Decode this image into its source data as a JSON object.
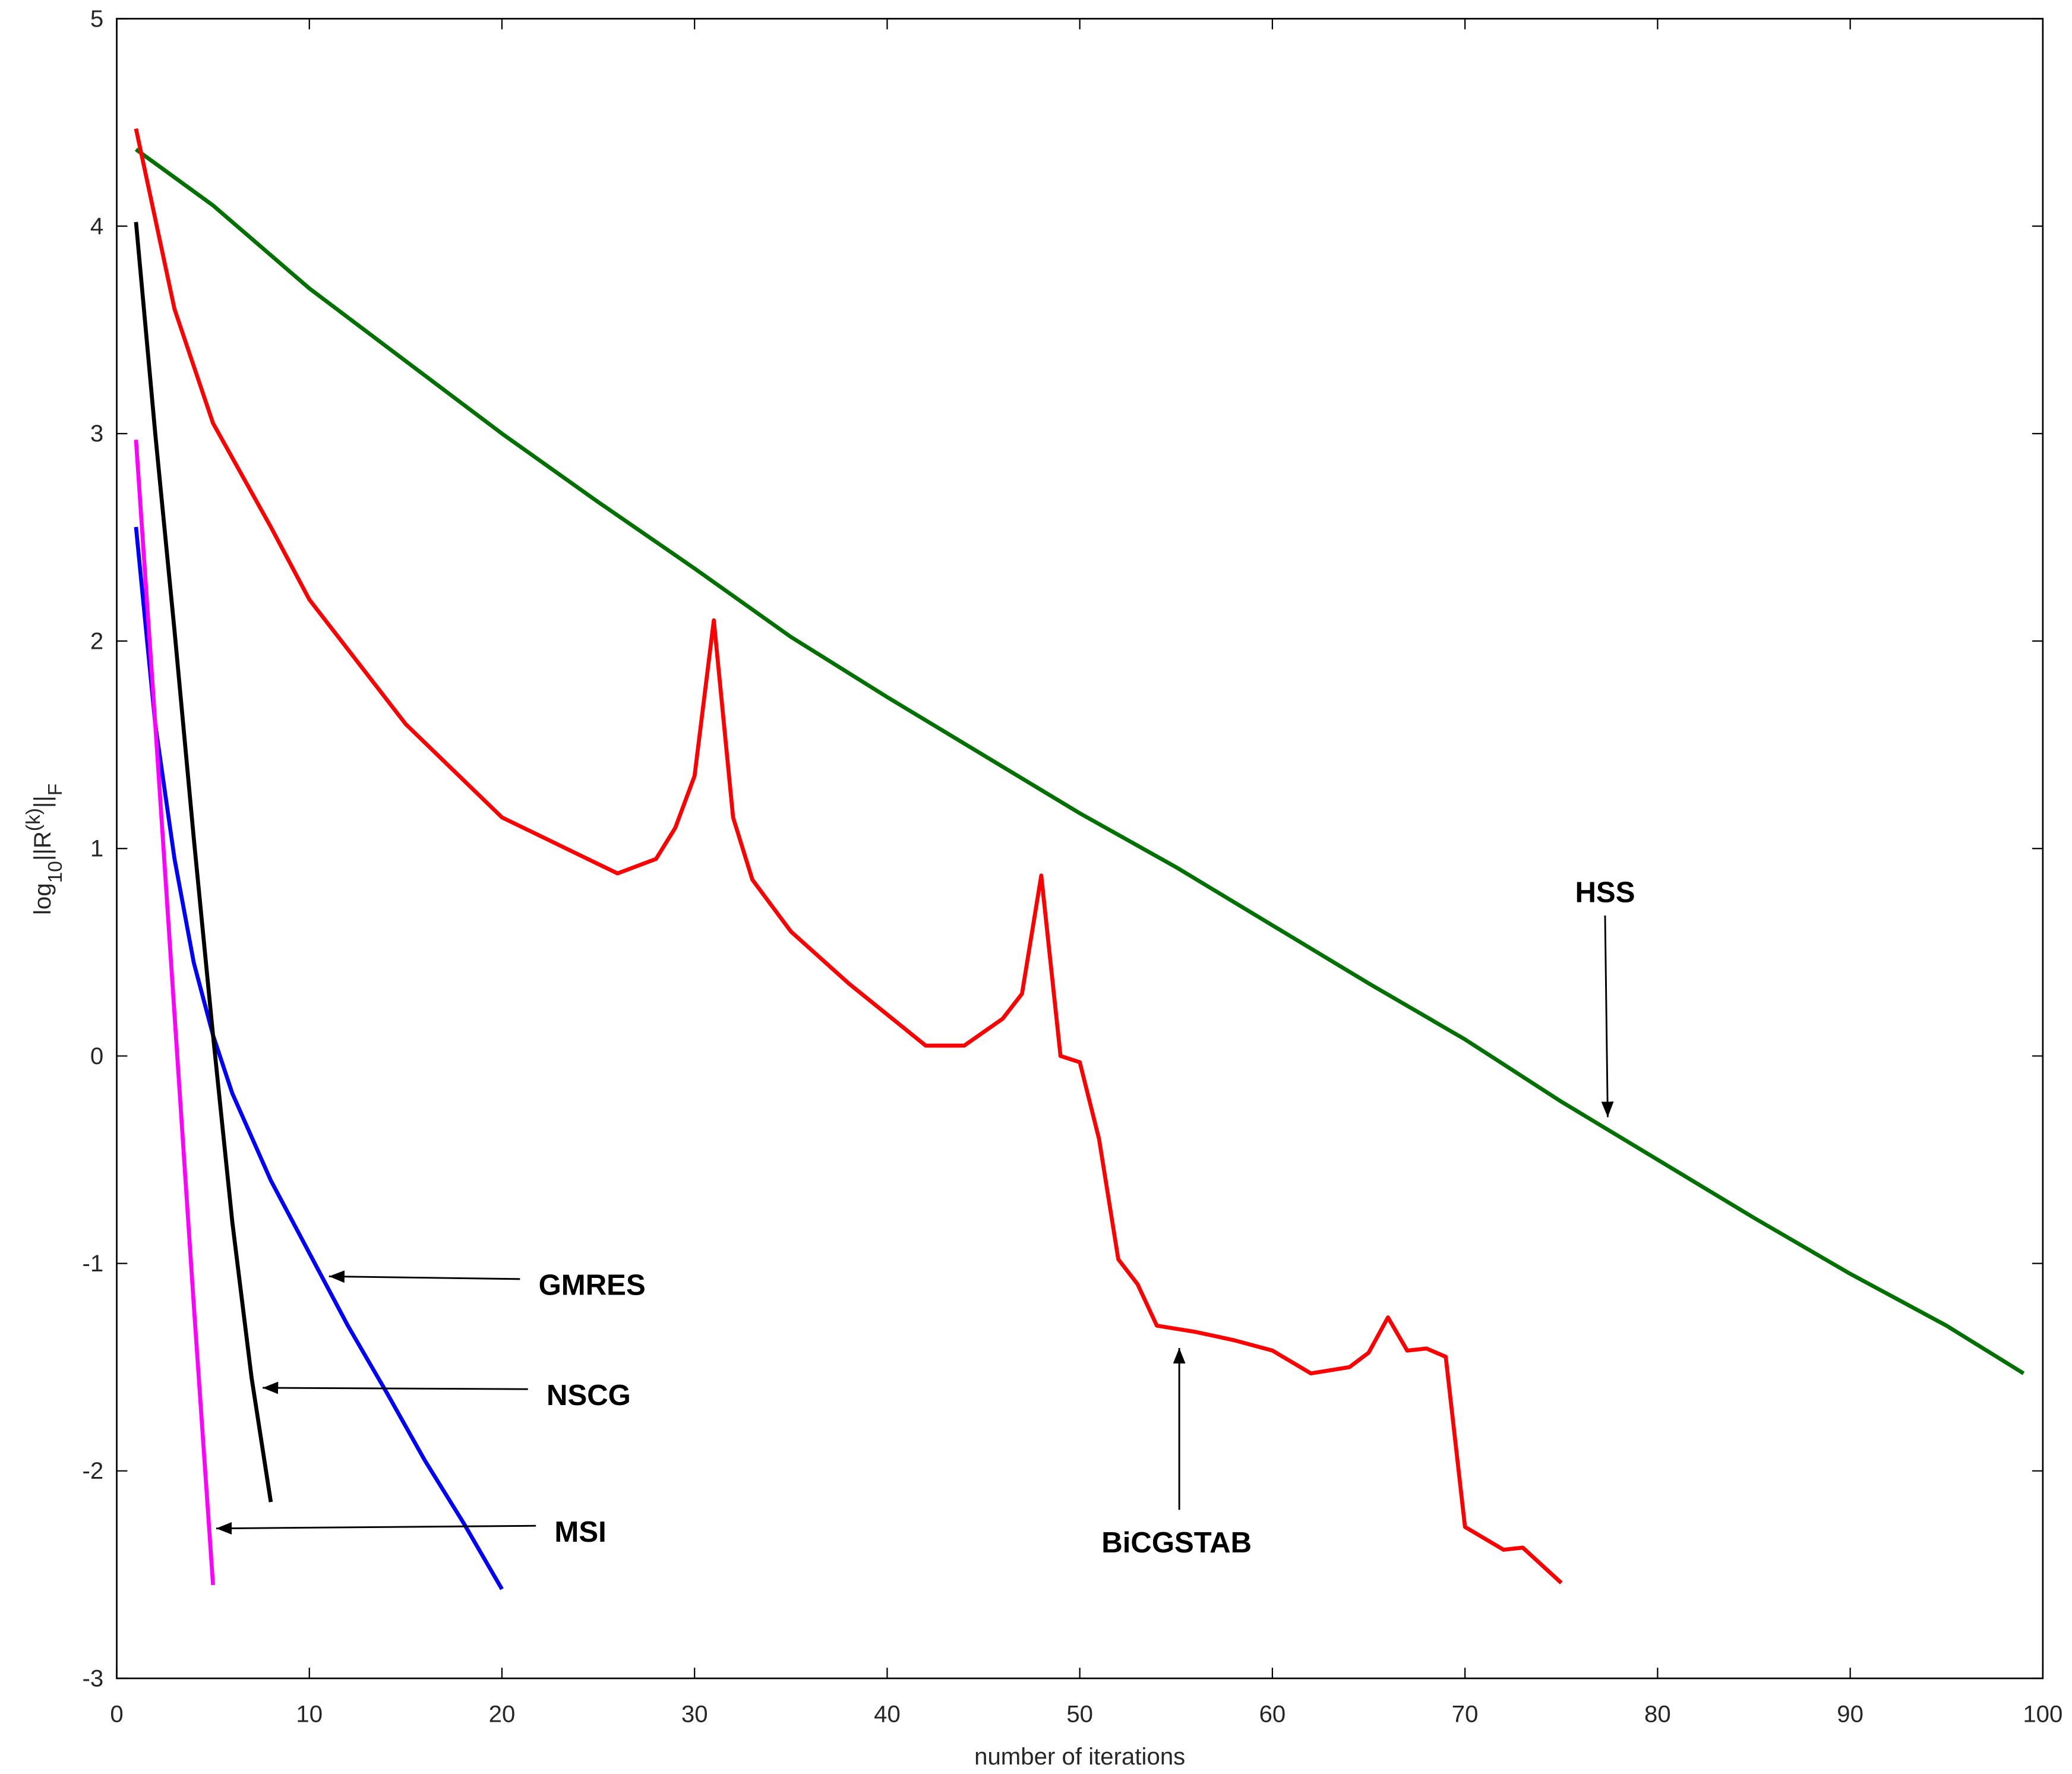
{
  "chart_data": {
    "type": "line",
    "x_label": "number of iterations",
    "y_label_parts": [
      "log",
      "10",
      "||R",
      "(k)",
      "||",
      "F"
    ],
    "xlim": [
      0,
      100
    ],
    "ylim": [
      -3,
      5
    ],
    "xticks": [
      0,
      10,
      20,
      30,
      40,
      50,
      60,
      70,
      80,
      90,
      100
    ],
    "yticks": [
      -3,
      -2,
      -1,
      0,
      1,
      2,
      3,
      4,
      5
    ],
    "grid": false,
    "series": [
      {
        "name": "HSS",
        "color": "#007000",
        "x": [
          1,
          5,
          10,
          15,
          20,
          25,
          30,
          35,
          40,
          45,
          50,
          55,
          60,
          65,
          70,
          75,
          80,
          85,
          90,
          95,
          99
        ],
        "values": [
          4.37,
          4.1,
          3.7,
          3.35,
          3.0,
          2.67,
          2.35,
          2.02,
          1.73,
          1.45,
          1.17,
          0.91,
          0.63,
          0.35,
          0.08,
          -0.22,
          -0.5,
          -0.78,
          -1.05,
          -1.3,
          -1.53
        ]
      },
      {
        "name": "BiCGSTAB",
        "color": "#ff0000",
        "x": [
          1,
          3,
          5,
          8,
          10,
          15,
          20,
          24,
          26,
          28,
          29,
          30,
          31,
          32,
          33,
          35,
          38,
          40,
          42,
          44,
          46,
          47,
          48,
          49,
          50,
          51,
          52,
          53,
          54,
          56,
          58,
          60,
          62,
          64,
          65,
          66,
          67,
          68,
          69,
          70,
          72,
          73,
          75
        ],
        "values": [
          4.47,
          3.6,
          3.05,
          2.55,
          2.2,
          1.6,
          1.15,
          0.97,
          0.88,
          0.95,
          1.1,
          1.35,
          2.1,
          1.15,
          0.85,
          0.6,
          0.35,
          0.2,
          0.05,
          0.05,
          0.18,
          0.3,
          0.87,
          0.0,
          -0.03,
          -0.4,
          -0.98,
          -1.1,
          -1.3,
          -1.33,
          -1.37,
          -1.42,
          -1.53,
          -1.5,
          -1.43,
          -1.26,
          -1.42,
          -1.41,
          -1.45,
          -2.27,
          -2.38,
          -2.37,
          -2.54
        ]
      },
      {
        "name": "GMRES",
        "color": "#0000ff",
        "x": [
          1,
          2,
          3,
          4,
          5,
          6,
          8,
          10,
          12,
          14,
          16,
          18,
          20
        ],
        "values": [
          2.55,
          1.6,
          0.95,
          0.45,
          0.1,
          -0.18,
          -0.6,
          -0.95,
          -1.3,
          -1.62,
          -1.95,
          -2.25,
          -2.57
        ]
      },
      {
        "name": "NSCG",
        "color": "#000000",
        "x": [
          1,
          2,
          3,
          4,
          5,
          6,
          7,
          8
        ],
        "values": [
          4.02,
          3.0,
          2.05,
          1.05,
          0.1,
          -0.8,
          -1.55,
          -2.15
        ]
      },
      {
        "name": "MSI",
        "color": "#ff00ff",
        "x": [
          1,
          2,
          3,
          4,
          5
        ],
        "values": [
          2.97,
          1.6,
          0.2,
          -1.2,
          -2.55
        ]
      }
    ]
  }
}
